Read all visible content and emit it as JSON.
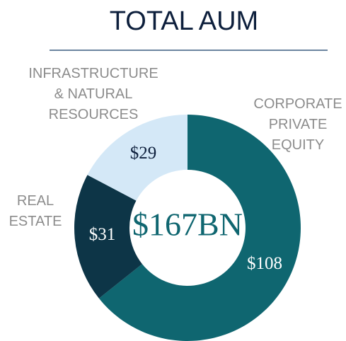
{
  "chart_data": {
    "type": "pie",
    "title": "TOTAL AUM",
    "center_label": "$167BN",
    "categories": [
      "CORPORATE\nPRIVATE\nEQUITY",
      "REAL\nESTATE",
      "INFRASTRUCTURE\n& NATURAL\nRESOURCES"
    ],
    "values": [
      108,
      31,
      29
    ],
    "value_labels": [
      "$108",
      "$31",
      "$29"
    ],
    "colors": [
      "#0f6670",
      "#0d3547",
      "#d4e8f7"
    ],
    "donut": true
  }
}
